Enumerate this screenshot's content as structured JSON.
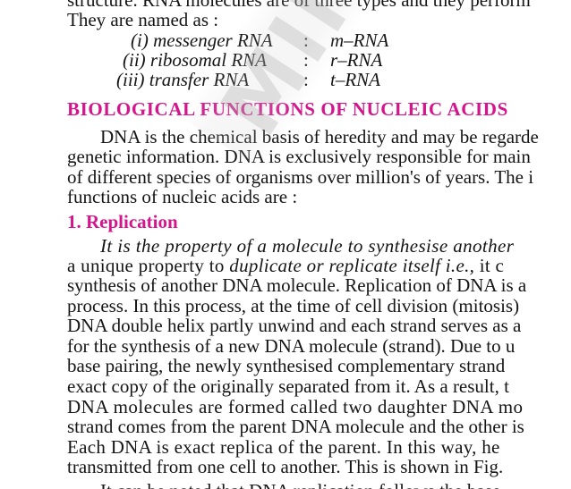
{
  "top_cut_line": "structure. RNA molecules are of three types and they perform",
  "intro_line": "They are named as :",
  "rna_types": [
    {
      "num": "(i)",
      "name": "messenger RNA",
      "colon": ":",
      "abbr": "m–RNA"
    },
    {
      "num": "(ii)",
      "name": "ribosomal RNA",
      "colon": ":",
      "abbr": "r–RNA"
    },
    {
      "num": "(iii)",
      "name": "transfer RNA",
      "colon": ":",
      "abbr": "t–RNA"
    }
  ],
  "section_heading": "BIOLOGICAL FUNCTIONS OF NUCLEIC ACIDS",
  "para1": [
    "DNA is the chemical basis of heredity and may be regarde",
    "genetic information. DNA is exclusively responsible for main",
    "of different species of organisms over million's of years. The i",
    "functions of nucleic acids are :"
  ],
  "subheading": "1. Replication",
  "para2_line1_italic": "It is the property of a molecule to synthesise another",
  "para2_line2_a": "a unique property to ",
  "para2_line2_it": "duplicate or replicate itself i.e.,",
  "para2_line2_b": " it c",
  "para2_lines": [
    "synthesis of another DNA molecule. Replication of DNA is a",
    "process. In this process, at the time of cell division (mitosis)",
    "DNA double helix partly unwind and each strand serves as a",
    "for the synthesis of a new DNA molecule (strand). Due to u",
    "base pairing, the newly synthesised complementary strand",
    "exact copy of the originally separated from it. As a result, t",
    "DNA molecules are formed called two daughter DNA mo",
    "strand comes from the parent DNA molecule and the other is",
    "Each DNA is exact replica of the parent. In this way, he",
    "transmitted from one cell to another. This is shown in Fig."
  ],
  "bottom_cut_line": "It can be noted that DNA replication follows the base",
  "watermark": "MIMWEE"
}
